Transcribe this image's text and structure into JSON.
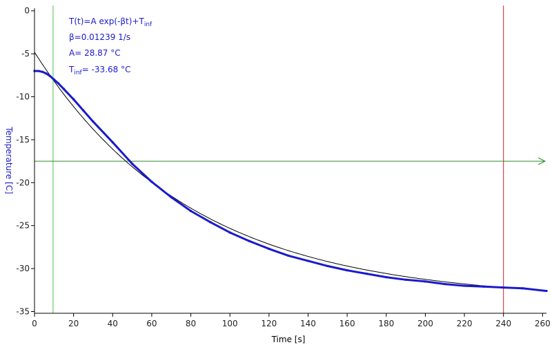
{
  "chart_data": {
    "type": "line",
    "xlabel": "Time [s]",
    "ylabel": "Temperature [C]",
    "xlim": [
      0,
      262
    ],
    "ylim": [
      -35.2,
      0.3
    ],
    "x_ticks": [
      0,
      20,
      40,
      60,
      80,
      100,
      120,
      140,
      160,
      180,
      200,
      220,
      240,
      260
    ],
    "y_ticks": [
      0,
      -5,
      -10,
      -15,
      -20,
      -25,
      -30,
      -35
    ],
    "grid": false,
    "fit": {
      "formula": "T(t)=A exp(-βt)+T",
      "formula_sub": "inf",
      "beta_text": "β=0.01239 1/s",
      "a_text": "A= 28.87 °C",
      "tinf_prefix": "T",
      "tinf_sub": "inf",
      "tinf_value": "= -33.68 °C",
      "beta": 0.01239,
      "A": 28.87,
      "T_inf": -33.68,
      "x_range": [
        0,
        262
      ]
    },
    "series": [
      {
        "color": "#1a1acc",
        "x": [
          0,
          2,
          4,
          6,
          8,
          10,
          12,
          15,
          20,
          25,
          30,
          40,
          50,
          60,
          70,
          80,
          90,
          100,
          110,
          120,
          130,
          140,
          150,
          160,
          170,
          180,
          190,
          200,
          210,
          220,
          230,
          240,
          250,
          262
        ],
        "y": [
          -7.0,
          -7.0,
          -7.1,
          -7.3,
          -7.6,
          -8.0,
          -8.4,
          -9.1,
          -10.3,
          -11.6,
          -12.9,
          -15.3,
          -17.8,
          -19.9,
          -21.7,
          -23.3,
          -24.6,
          -25.8,
          -26.8,
          -27.7,
          -28.5,
          -29.1,
          -29.7,
          -30.2,
          -30.6,
          -31.0,
          -31.3,
          -31.5,
          -31.8,
          -32.0,
          -32.1,
          -32.2,
          -32.3,
          -32.6
        ]
      }
    ],
    "cursors": {
      "x1": 9.5,
      "x2": 240,
      "y": -17.5,
      "x1_color": "#4cc04c",
      "x2_color": "#cc2222",
      "y_color": "#2a8a2a"
    },
    "colors": {
      "axis": "#000000",
      "ylabel": "#1a1acc",
      "fit_line": "#000000"
    }
  }
}
